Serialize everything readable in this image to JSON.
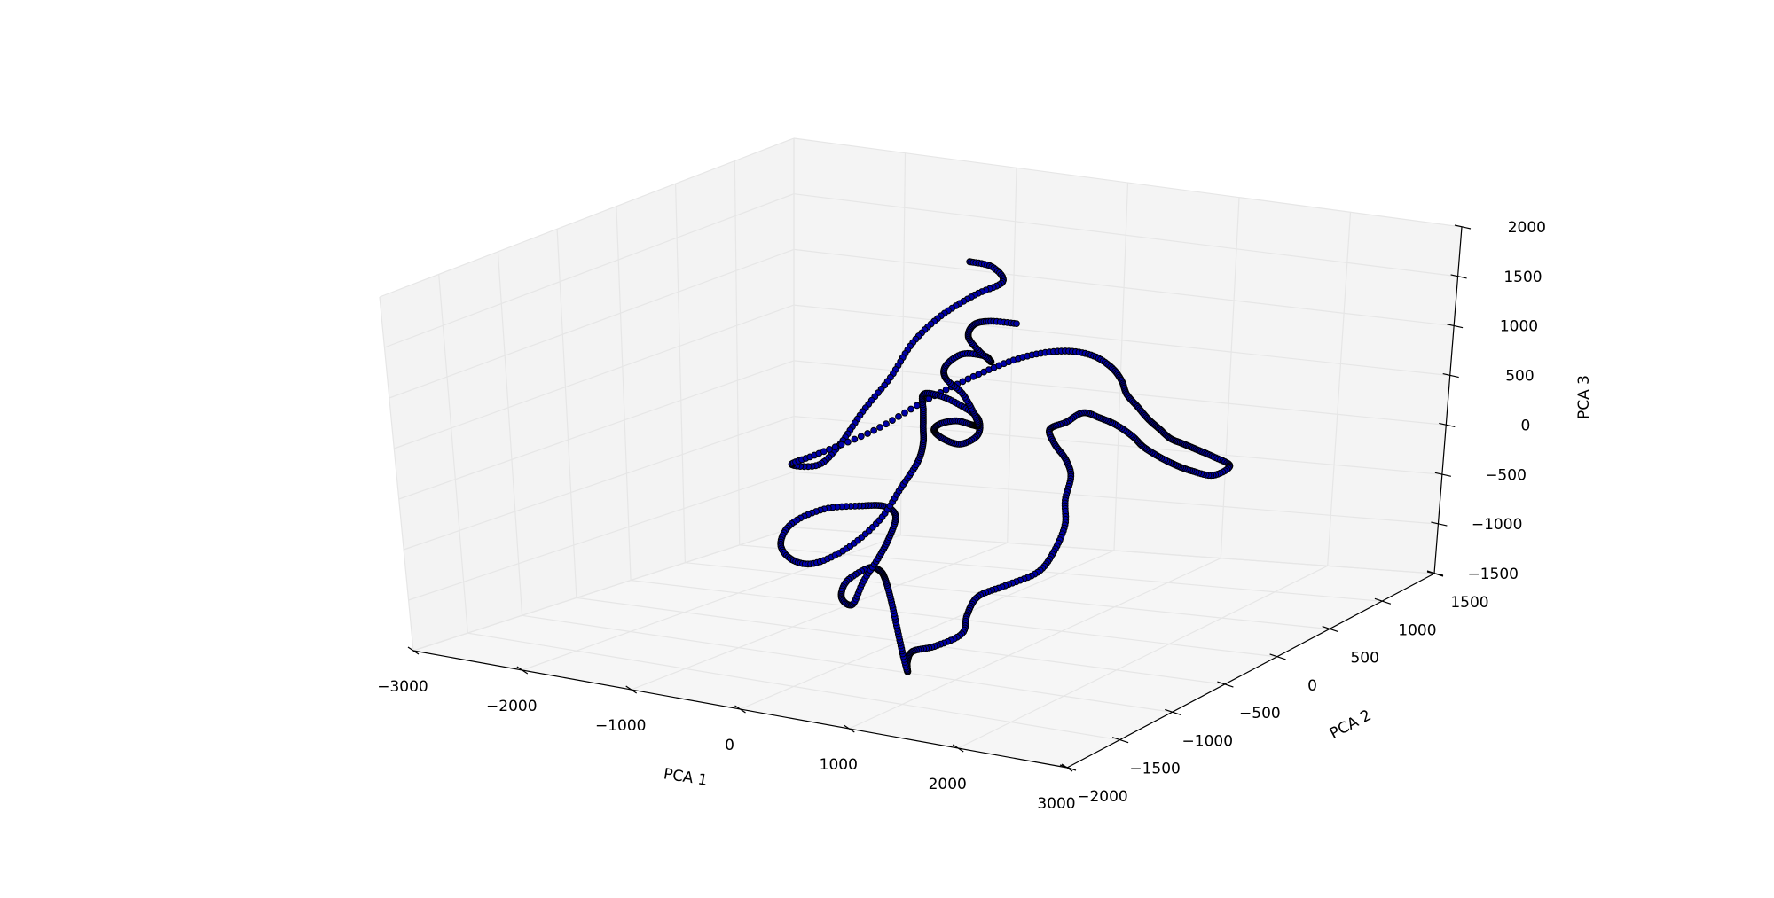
{
  "chart_data": {
    "type": "scatter",
    "projection": "3d",
    "title": "",
    "xlabel": "PCA 1",
    "ylabel": "PCA 2",
    "zlabel": "PCA 3",
    "xlim": [
      -3000,
      3000
    ],
    "ylim": [
      -2000,
      1500
    ],
    "zlim": [
      -1500,
      2000
    ],
    "xticks": [
      -3000,
      -2000,
      -1000,
      0,
      1000,
      2000,
      3000
    ],
    "xtick_labels": [
      "−3000",
      "−2000",
      "−1000",
      "0",
      "1000",
      "2000",
      "3000"
    ],
    "yticks": [
      -2000,
      -1500,
      -1000,
      -500,
      0,
      500,
      1000,
      1500
    ],
    "ytick_labels": [
      "−2000",
      "−1500",
      "−1000",
      "−500",
      "0",
      "500",
      "1000",
      "1500"
    ],
    "zticks": [
      -1500,
      -1000,
      -500,
      0,
      500,
      1000,
      1500,
      2000
    ],
    "ztick_labels": [
      "−1500",
      "−1000",
      "−500",
      "0",
      "500",
      "1000",
      "1500",
      "2000"
    ],
    "grid": true,
    "marker_color": "#0000a8",
    "marker_edge_color": "#000000",
    "trajectory_anchors": [
      [
        -1000,
        1100,
        1300
      ],
      [
        -850,
        1150,
        1250
      ],
      [
        -700,
        1100,
        1150
      ],
      [
        -850,
        1000,
        1050
      ],
      [
        -1000,
        850,
        900
      ],
      [
        -1100,
        700,
        700
      ],
      [
        -1200,
        600,
        400
      ],
      [
        -1350,
        500,
        100
      ],
      [
        -1500,
        450,
        -200
      ],
      [
        -1750,
        500,
        -450
      ],
      [
        -2050,
        550,
        -500
      ],
      [
        -1900,
        650,
        -420
      ],
      [
        -1600,
        850,
        -250
      ],
      [
        -1300,
        1050,
        0
      ],
      [
        -1000,
        1200,
        200
      ],
      [
        -700,
        1300,
        350
      ],
      [
        -400,
        1350,
        420
      ],
      [
        -100,
        1320,
        430
      ],
      [
        150,
        1250,
        380
      ],
      [
        350,
        1150,
        320
      ],
      [
        500,
        1050,
        250
      ],
      [
        700,
        950,
        200
      ],
      [
        900,
        850,
        150
      ],
      [
        1050,
        800,
        100
      ],
      [
        1200,
        750,
        50
      ],
      [
        1350,
        720,
        30
      ],
      [
        1500,
        700,
        0
      ],
      [
        1650,
        700,
        -50
      ],
      [
        1800,
        700,
        -120
      ],
      [
        1700,
        650,
        -200
      ],
      [
        1550,
        600,
        -150
      ],
      [
        1450,
        550,
        -80
      ],
      [
        1300,
        550,
        -20
      ],
      [
        1150,
        550,
        60
      ],
      [
        1000,
        600,
        120
      ],
      [
        800,
        650,
        180
      ],
      [
        600,
        700,
        200
      ],
      [
        400,
        750,
        200
      ],
      [
        300,
        700,
        120
      ],
      [
        200,
        650,
        60
      ],
      [
        300,
        600,
        -50
      ],
      [
        450,
        550,
        -150
      ],
      [
        600,
        450,
        -250
      ],
      [
        700,
        300,
        -400
      ],
      [
        850,
        150,
        -550
      ],
      [
        950,
        -50,
        -700
      ],
      [
        1000,
        -250,
        -800
      ],
      [
        900,
        -450,
        -850
      ],
      [
        800,
        -600,
        -900
      ],
      [
        850,
        -750,
        -1000
      ],
      [
        950,
        -900,
        -1100
      ],
      [
        800,
        -1000,
        -1200
      ],
      [
        650,
        -1050,
        -1250
      ],
      [
        700,
        -1150,
        -1300
      ],
      [
        800,
        -1250,
        -1330
      ],
      [
        650,
        -1150,
        -1200
      ],
      [
        450,
        -1000,
        -1050
      ],
      [
        250,
        -850,
        -900
      ],
      [
        50,
        -700,
        -800
      ],
      [
        -100,
        -600,
        -780
      ],
      [
        -250,
        -550,
        -800
      ],
      [
        -350,
        -650,
        -900
      ],
      [
        -250,
        -800,
        -980
      ],
      [
        -100,
        -850,
        -1000
      ],
      [
        -150,
        -700,
        -850
      ],
      [
        -200,
        -500,
        -700
      ],
      [
        -300,
        -300,
        -600
      ],
      [
        -450,
        -100,
        -520
      ],
      [
        -650,
        0,
        -500
      ],
      [
        -900,
        50,
        -550
      ],
      [
        -1200,
        0,
        -600
      ],
      [
        -1350,
        -150,
        -700
      ],
      [
        -1250,
        -350,
        -800
      ],
      [
        -1000,
        -500,
        -850
      ],
      [
        -750,
        -550,
        -830
      ],
      [
        -550,
        -450,
        -700
      ],
      [
        -450,
        -250,
        -500
      ],
      [
        -500,
        0,
        -300
      ],
      [
        -550,
        200,
        -150
      ],
      [
        -650,
        350,
        -50
      ],
      [
        -750,
        450,
        50
      ],
      [
        -850,
        550,
        150
      ],
      [
        -950,
        650,
        250
      ],
      [
        -900,
        750,
        200
      ],
      [
        -750,
        800,
        100
      ],
      [
        -600,
        800,
        0
      ],
      [
        -500,
        700,
        -100
      ],
      [
        -550,
        600,
        -150
      ],
      [
        -650,
        550,
        -100
      ],
      [
        -700,
        500,
        0
      ],
      [
        -600,
        450,
        100
      ],
      [
        -450,
        450,
        150
      ],
      [
        -350,
        500,
        100
      ],
      [
        -400,
        600,
        50
      ],
      [
        -550,
        700,
        120
      ],
      [
        -700,
        750,
        250
      ],
      [
        -800,
        700,
        400
      ],
      [
        -750,
        650,
        550
      ],
      [
        -650,
        700,
        650
      ],
      [
        -550,
        800,
        600
      ],
      [
        -600,
        900,
        500
      ],
      [
        -700,
        1000,
        450
      ],
      [
        -850,
        1050,
        500
      ],
      [
        -900,
        1000,
        650
      ],
      [
        -800,
        950,
        800
      ],
      [
        -650,
        950,
        850
      ],
      [
        -500,
        1050,
        800
      ]
    ]
  }
}
